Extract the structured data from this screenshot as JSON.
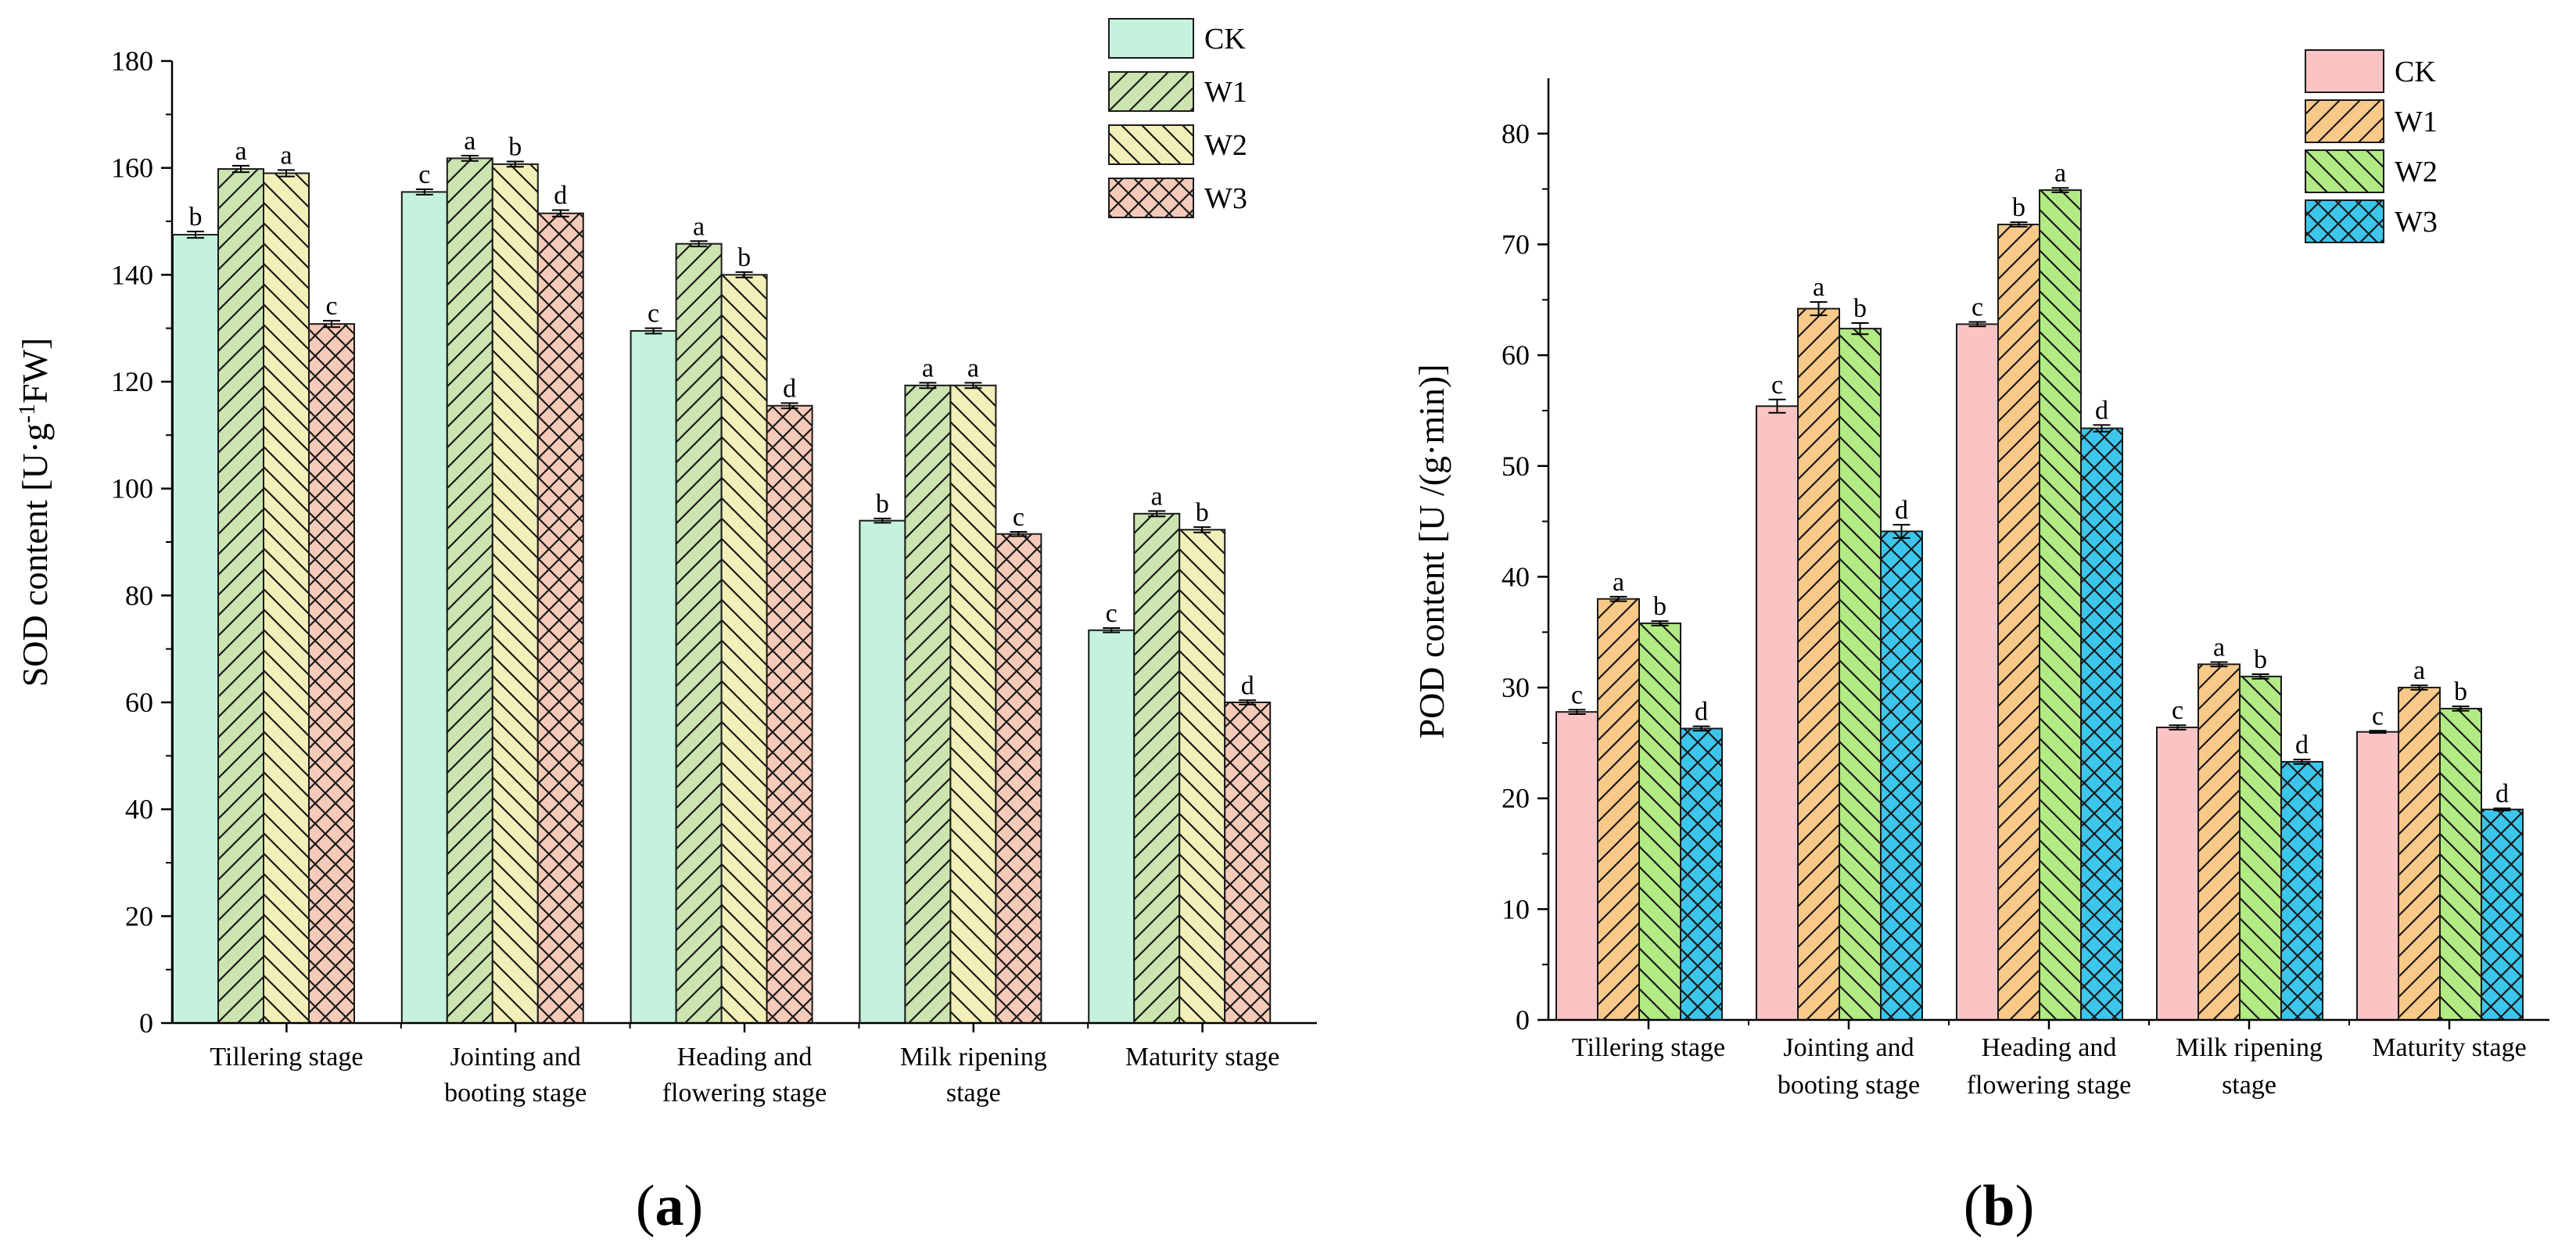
{
  "chart_data": [
    {
      "type": "bar",
      "panel": "a",
      "panel_label_open": "(",
      "panel_label_letter": "a",
      "panel_label_close": ")",
      "categories": [
        [
          "Tillering stage"
        ],
        [
          "Jointing and",
          "booting stage"
        ],
        [
          "Heading and",
          "flowering stage"
        ],
        [
          "Milk ripening",
          "stage"
        ],
        [
          "Maturity stage"
        ]
      ],
      "ylabel_prefix": "SOD content [U·g",
      "ylabel_sup": "-1",
      "ylabel_suffix": "FW]",
      "xlabel": "",
      "ylim": [
        0,
        180
      ],
      "yticks": [
        0,
        20,
        40,
        60,
        80,
        100,
        120,
        140,
        160,
        180
      ],
      "legend_position": "top-right",
      "series": [
        {
          "name": "CK",
          "color": "#c4f2dc",
          "pattern": "none",
          "values": [
            147.5,
            155.5,
            129.5,
            94,
            73.5
          ],
          "errors": [
            0.6,
            0.5,
            0.5,
            0.4,
            0.4
          ],
          "letters": [
            "b",
            "c",
            "c",
            "b",
            "c"
          ]
        },
        {
          "name": "W1",
          "color": "#cbe4b0",
          "pattern": "slash",
          "values": [
            159.8,
            161.8,
            145.8,
            119.3,
            95.3
          ],
          "errors": [
            0.6,
            0.5,
            0.5,
            0.5,
            0.5
          ],
          "letters": [
            "a",
            "a",
            "a",
            "a",
            "a"
          ]
        },
        {
          "name": "W2",
          "color": "#f2f0b8",
          "pattern": "backslash",
          "values": [
            159,
            160.7,
            140,
            119.3,
            92.3
          ],
          "errors": [
            0.6,
            0.5,
            0.5,
            0.5,
            0.5
          ],
          "letters": [
            "a",
            "b",
            "b",
            "a",
            "b"
          ]
        },
        {
          "name": "W3",
          "color": "#f6cab8",
          "pattern": "crosshatch",
          "values": [
            130.8,
            151.5,
            115.5,
            91.5,
            60
          ],
          "errors": [
            0.6,
            0.6,
            0.5,
            0.4,
            0.4
          ],
          "letters": [
            "c",
            "d",
            "d",
            "c",
            "d"
          ]
        }
      ]
    },
    {
      "type": "bar",
      "panel": "b",
      "panel_label_open": "(",
      "panel_label_letter": "b",
      "panel_label_close": ")",
      "categories": [
        [
          "Tillering stage"
        ],
        [
          "Jointing and",
          "booting stage"
        ],
        [
          "Heading and",
          "flowering stage"
        ],
        [
          "Milk ripening",
          "stage"
        ],
        [
          "Maturity stage"
        ]
      ],
      "ylabel": "POD  content [U /(g·min)]",
      "xlabel": "",
      "ylim": [
        0,
        85
      ],
      "yticks": [
        0,
        10,
        20,
        30,
        40,
        50,
        60,
        70,
        80
      ],
      "legend_position": "top-right",
      "series": [
        {
          "name": "CK",
          "color": "#fbc4c4",
          "pattern": "none",
          "values": [
            27.8,
            55.4,
            62.8,
            26.4,
            26
          ],
          "errors": [
            0.2,
            0.6,
            0.2,
            0.2,
            0.1
          ],
          "letters": [
            "c",
            "c",
            "c",
            "c",
            "c"
          ]
        },
        {
          "name": "W1",
          "color": "#f9c98a",
          "pattern": "slash",
          "values": [
            38,
            64.2,
            71.8,
            32.1,
            30
          ],
          "errors": [
            0.2,
            0.6,
            0.2,
            0.2,
            0.2
          ],
          "letters": [
            "a",
            "a",
            "b",
            "a",
            "a"
          ]
        },
        {
          "name": "W2",
          "color": "#b2ea84",
          "pattern": "backslash",
          "values": [
            35.8,
            62.4,
            74.9,
            31,
            28.1
          ],
          "errors": [
            0.2,
            0.5,
            0.2,
            0.2,
            0.2
          ],
          "letters": [
            "b",
            "b",
            "a",
            "b",
            "b"
          ]
        },
        {
          "name": "W3",
          "color": "#3cc6ec",
          "pattern": "crosshatch",
          "values": [
            26.3,
            44.1,
            53.4,
            23.3,
            19
          ],
          "errors": [
            0.2,
            0.6,
            0.3,
            0.2,
            0.1
          ],
          "letters": [
            "d",
            "d",
            "d",
            "d",
            "d"
          ]
        }
      ]
    }
  ]
}
